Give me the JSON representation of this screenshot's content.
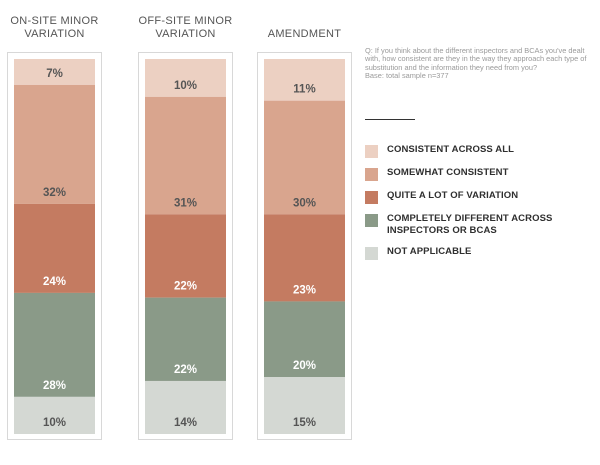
{
  "question": {
    "text": "Q: If you think about the different inspectors and BCAs you've dealt with, how consistent are they in the way they approach each type of substitution and the information they need from you?",
    "base": "Base: total sample n=377"
  },
  "colors": {
    "consistent_across_all": "#ecd0c2",
    "somewhat_consistent": "#d9a58e",
    "quite_a_lot_of_variation": "#c47b61",
    "completely_different": "#8a9a88",
    "not_applicable": "#d4d8d3",
    "column_border": "#d8d8d8",
    "label_light": "#ffffff",
    "label_dark": "#555555"
  },
  "chart_data": {
    "type": "bar",
    "stacked": true,
    "normalized": true,
    "title": "",
    "xlabel": "",
    "ylabel": "",
    "ylim": [
      0,
      100
    ],
    "categories": [
      [
        "ON-SITE MINOR",
        "VARIATION"
      ],
      [
        "OFF-SITE MINOR",
        "VARIATION"
      ],
      [
        "AMENDMENT"
      ]
    ],
    "series": [
      {
        "name": "CONSISTENT ACROSS ALL",
        "values": [
          7,
          10,
          11
        ],
        "labels": [
          "7%",
          "10%",
          "11%"
        ],
        "color": "#ecd0c2",
        "label_color": "#555555"
      },
      {
        "name": "SOMEWHAT CONSISTENT",
        "values": [
          32,
          31,
          30
        ],
        "labels": [
          "32%",
          "31%",
          "30%"
        ],
        "color": "#d9a58e",
        "label_color": "#555555"
      },
      {
        "name": "QUITE A LOT OF VARIATION",
        "values": [
          24,
          22,
          23
        ],
        "labels": [
          "24%",
          "22%",
          "23%"
        ],
        "color": "#c47b61",
        "label_color": "#ffffff"
      },
      {
        "name": "COMPLETELY DIFFERENT ACROSS INSPECTORS OR BCAS",
        "values": [
          28,
          22,
          20
        ],
        "labels": [
          "28%",
          "22%",
          "20%"
        ],
        "color": "#8a9a88",
        "label_color": "#ffffff"
      },
      {
        "name": "NOT APPLICABLE",
        "values": [
          10,
          14,
          15
        ],
        "labels": [
          "10%",
          "14%",
          "15%"
        ],
        "color": "#d4d8d3",
        "label_color": "#555555"
      }
    ],
    "legend": {
      "position": "right",
      "items": [
        {
          "label": "CONSISTENT ACROSS ALL",
          "color": "#ecd0c2"
        },
        {
          "label": "SOMEWHAT CONSISTENT",
          "color": "#d9a58e"
        },
        {
          "label": "QUITE A LOT OF VARIATION",
          "color": "#c47b61"
        },
        {
          "label": "COMPLETELY DIFFERENT ACROSS INSPECTORS OR BCAS",
          "color": "#8a9a88"
        },
        {
          "label": "NOT APPLICABLE",
          "color": "#d4d8d3"
        }
      ]
    }
  }
}
